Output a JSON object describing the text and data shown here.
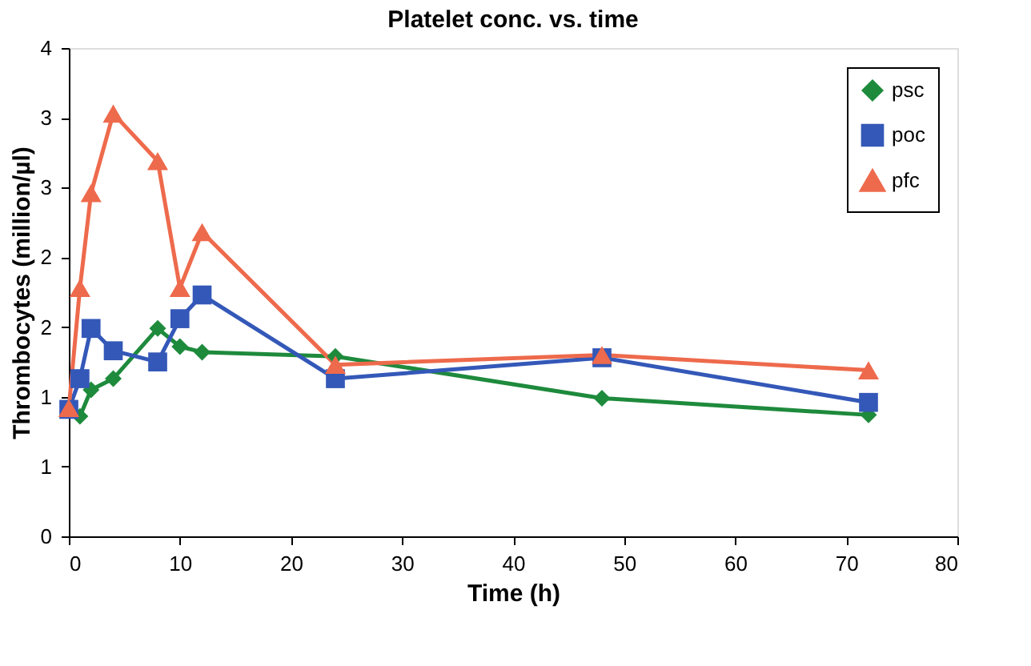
{
  "chart_data": {
    "type": "line",
    "title": "Platelet conc. vs. time",
    "xlabel": "Time (h)",
    "ylabel": "Thrombocytes (million/µl)",
    "x": [
      0,
      1,
      2,
      4,
      8,
      10,
      12,
      24,
      48,
      72
    ],
    "series": [
      {
        "name": "psc",
        "color": "#1e8a3c",
        "marker": "diamond",
        "values": [
          0.91,
          0.86,
          1.05,
          1.13,
          1.49,
          1.36,
          1.32,
          1.29,
          0.99,
          0.87
        ]
      },
      {
        "name": "poc",
        "color": "#3458b8",
        "marker": "square",
        "values": [
          0.91,
          1.13,
          1.49,
          1.33,
          1.25,
          1.56,
          1.73,
          1.13,
          1.28,
          0.96
        ]
      },
      {
        "name": "pfc",
        "color": "#ee6a4c",
        "marker": "triangle",
        "values": [
          0.92,
          1.78,
          2.46,
          3.03,
          2.69,
          1.78,
          2.18,
          1.23,
          1.3,
          1.19
        ]
      }
    ],
    "xlim": [
      0,
      80
    ],
    "xticks": [
      0,
      10,
      20,
      30,
      40,
      50,
      60,
      70,
      80
    ],
    "ylim": [
      0,
      3.5
    ],
    "yticks": [
      0,
      {
        "value": 0.5,
        "label": "1"
      },
      1,
      {
        "value": 1.5,
        "label": "2"
      },
      2,
      {
        "value": 2.5,
        "label": "3"
      },
      3,
      {
        "value": 3.5,
        "label": "4"
      }
    ],
    "grid": false,
    "legend": "top right",
    "line_style": "solid"
  }
}
